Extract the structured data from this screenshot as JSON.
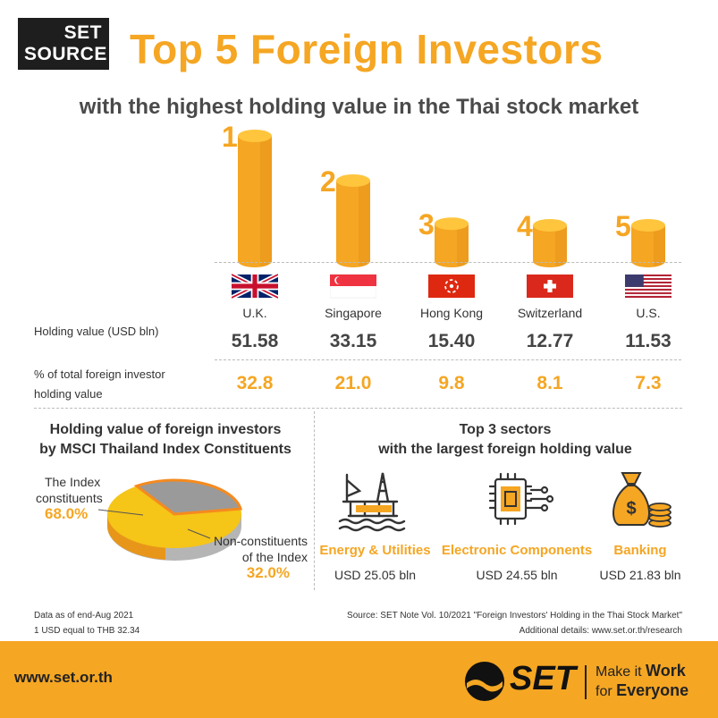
{
  "logo": {
    "line1": "SET",
    "line2": "SOURCE"
  },
  "title": "Top 5 Foreign Investors",
  "subtitle": "with the highest holding value in the Thai stock market",
  "colors": {
    "accent": "#F5A623",
    "dark": "#1e1e1e",
    "gray": "#9a9a9a"
  },
  "chart_data": [
    {
      "type": "bar",
      "categories": [
        "U.K.",
        "Singapore",
        "Hong Kong",
        "Switzerland",
        "U.S."
      ],
      "ranks": [
        "1",
        "2",
        "3",
        "4",
        "5"
      ],
      "values": [
        51.58,
        33.15,
        15.4,
        12.77,
        11.53
      ],
      "value_labels": [
        "51.58",
        "33.15",
        "15.40",
        "12.77",
        "11.53"
      ],
      "percent_labels": [
        "32.8",
        "21.0",
        "9.8",
        "8.1",
        "7.3"
      ],
      "row_labels": {
        "value": "Holding value (USD bln)",
        "percent_l1": "% of total foreign investor",
        "percent_l2": "holding value"
      }
    },
    {
      "type": "pie",
      "title_l1": "Holding value of foreign investors",
      "title_l2": "by MSCI Thailand Index Constituents",
      "slices": [
        {
          "label_l1": "The Index",
          "label_l2": "constituents",
          "pct_label": "68.0%",
          "value": 68.0,
          "color": "#F5C518"
        },
        {
          "label_l1": "Non-constituents",
          "label_l2": "of the Index",
          "pct_label": "32.0%",
          "value": 32.0,
          "color": "#9a9a9a"
        }
      ]
    }
  ],
  "sectors": {
    "title_l1": "Top 3 sectors",
    "title_l2": "with the largest foreign holding value",
    "items": [
      {
        "name": "Energy & Utilities",
        "value": "USD 25.05 bln",
        "icon": "oil-rig-icon"
      },
      {
        "name": "Electronic Components",
        "value": "USD 24.55 bln",
        "icon": "chip-icon"
      },
      {
        "name": "Banking",
        "value": "USD 21.83 bln",
        "icon": "money-bag-icon"
      }
    ]
  },
  "notes": {
    "left_l1": "Data as of end-Aug 2021",
    "left_l2": "1 USD equal to THB 32.34",
    "right_l1": "Source: SET Note Vol. 10/2021 \"Foreign Investors' Holding in the Thai Stock Market\"",
    "right_l2": "Additional details: www.set.or.th/research"
  },
  "footer": {
    "url": "www.set.or.th",
    "brand": "SET",
    "slogan_a": "Make it",
    "slogan_b": "Work",
    "slogan_c": "for",
    "slogan_d": "Everyone"
  }
}
